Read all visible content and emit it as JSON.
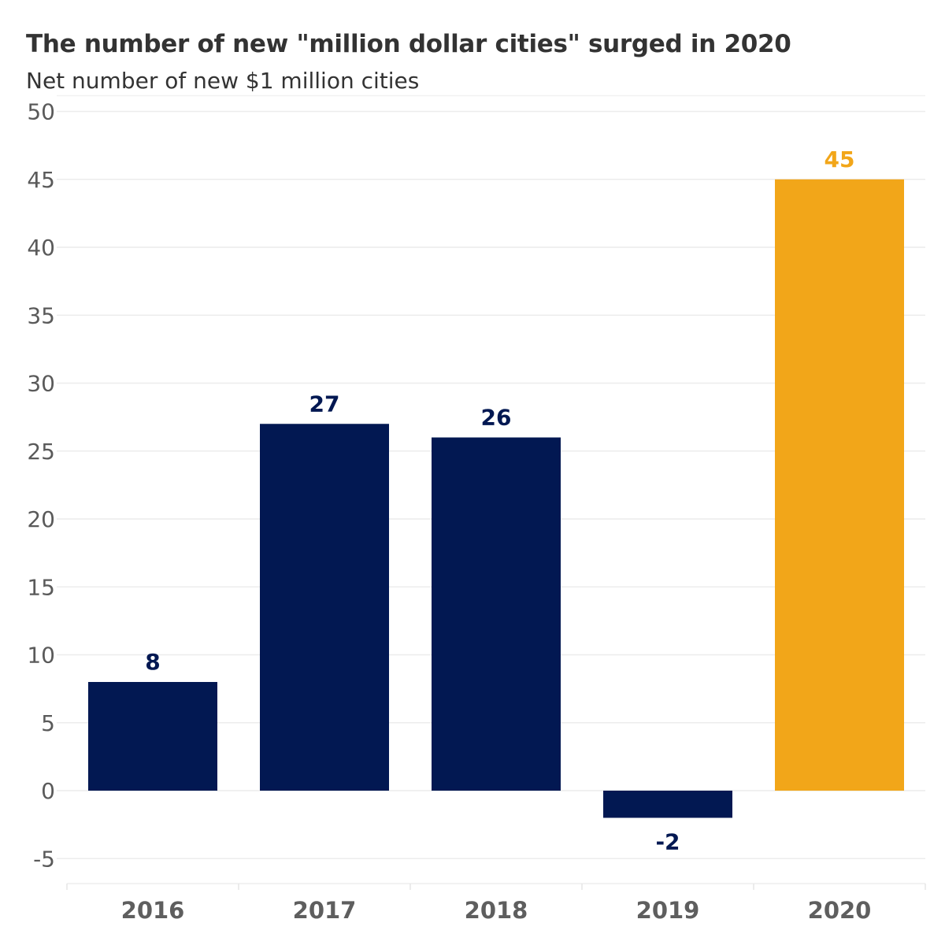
{
  "chart_data": {
    "type": "bar",
    "title": "The number of new \"million dollar cities\" surged in 2020",
    "subtitle": "Net number of new $1 million cities",
    "categories": [
      "2016",
      "2017",
      "2018",
      "2019",
      "2020"
    ],
    "values": [
      8,
      27,
      26,
      -2,
      45
    ],
    "data_labels": [
      "8",
      "27",
      "26",
      "-2",
      "45"
    ],
    "ylim": [
      -5,
      50
    ],
    "yticks": [
      -5,
      0,
      5,
      10,
      15,
      20,
      25,
      30,
      35,
      40,
      45,
      50
    ],
    "ytick_labels": [
      "-5",
      "0",
      "5",
      "10",
      "15",
      "20",
      "25",
      "30",
      "35",
      "40",
      "45",
      "50"
    ],
    "grid": true,
    "legend": "none",
    "bar_colors": [
      "#021852",
      "#021852",
      "#021852",
      "#021852",
      "#f2a619"
    ],
    "gridline_color": "#ececec"
  }
}
